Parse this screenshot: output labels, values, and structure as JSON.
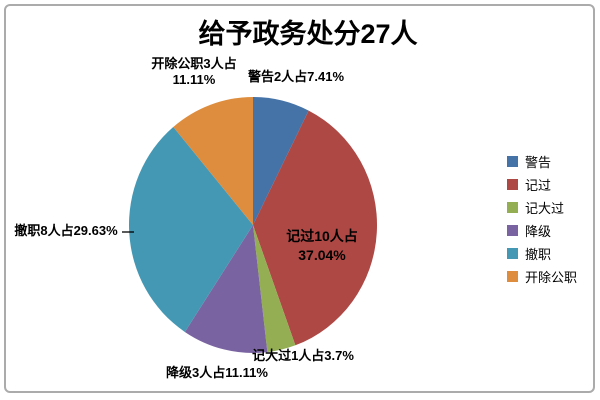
{
  "chart_data": {
    "type": "pie",
    "title": "给予政务处分27人",
    "categories": [
      "警告",
      "记过",
      "记大过",
      "降级",
      "撤职",
      "开除公职"
    ],
    "values": [
      2,
      10,
      1,
      3,
      8,
      3
    ],
    "percents": [
      7.41,
      37.04,
      3.7,
      11.11,
      29.63,
      11.11
    ],
    "colors": [
      "#4573A8",
      "#AD4845",
      "#94AF53",
      "#7A63A1",
      "#4598B4",
      "#DE8D3E"
    ],
    "start_angle_deg": 0,
    "direction": "clockwise",
    "legend_position": "right",
    "grid": "off",
    "data_labels": {
      "jinggao": "警告2人占7.41%",
      "jiguo_line1": "记过10人占",
      "jiguo_line2": "37.04%",
      "jidaguo": "记大过1人占3.7%",
      "jiangji": "降级3人占11.11%",
      "chezhi": "撤职8人占29.63%",
      "kaichu_line1": "开除公职3人占",
      "kaichu_line2": "11.11%"
    }
  }
}
